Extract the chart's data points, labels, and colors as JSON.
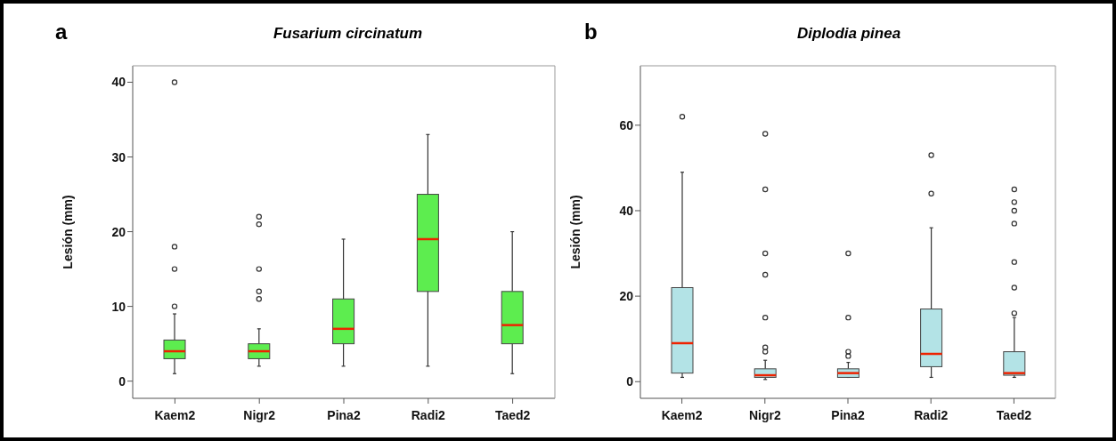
{
  "chart_data": [
    {
      "type": "box",
      "title": "Fusarium circinatum",
      "ylabel": "Lesión (mm)",
      "annotations": [
        "a"
      ],
      "categories": [
        "Kaem2",
        "Nigr2",
        "Pina2",
        "Radi2",
        "Taed2"
      ],
      "ylim": [
        -2.3,
        42.2
      ],
      "yticks": [
        0,
        10,
        20,
        30,
        40
      ],
      "series": [
        {
          "color": "#5ded4f",
          "boxes": [
            {
              "low": 1,
              "q1": 3,
              "median": 4,
              "q3": 5.5,
              "high": 9,
              "outliers": [
                10,
                15,
                18,
                40
              ]
            },
            {
              "low": 2,
              "q1": 3,
              "median": 4,
              "q3": 5,
              "high": 7,
              "outliers": [
                11,
                12,
                15,
                21,
                22
              ]
            },
            {
              "low": 2,
              "q1": 5,
              "median": 7,
              "q3": 11,
              "high": 19
            },
            {
              "low": 2,
              "q1": 12,
              "median": 19,
              "q3": 25,
              "high": 33
            },
            {
              "low": 1,
              "q1": 5,
              "median": 7.5,
              "q3": 12,
              "high": 20
            }
          ]
        }
      ]
    },
    {
      "type": "box",
      "title": "Diplodia pinea",
      "ylabel": "Lesión (mm)",
      "annotations": [
        "b"
      ],
      "categories": [
        "Kaem2",
        "Nigr2",
        "Pina2",
        "Radi2",
        "Taed2"
      ],
      "ylim": [
        -3.9,
        73.9
      ],
      "yticks": [
        0,
        20,
        40,
        60
      ],
      "series": [
        {
          "color": "#b3e3e6",
          "boxes": [
            {
              "low": 1,
              "q1": 2,
              "median": 9,
              "q3": 22,
              "high": 49,
              "outliers": [
                62
              ]
            },
            {
              "low": 0.5,
              "q1": 1,
              "median": 1.5,
              "q3": 3,
              "high": 5,
              "outliers": [
                7,
                8,
                15,
                25,
                30,
                45,
                58
              ]
            },
            {
              "low": 1,
              "q1": 1,
              "median": 2,
              "q3": 3,
              "high": 4.5,
              "outliers": [
                6,
                7,
                15,
                30
              ]
            },
            {
              "low": 1,
              "q1": 3.5,
              "median": 6.5,
              "q3": 17,
              "high": 36,
              "outliers": [
                44,
                53
              ]
            },
            {
              "low": 1,
              "q1": 1.5,
              "median": 2,
              "q3": 7,
              "high": 15,
              "outliers": [
                16,
                22,
                28,
                37,
                40,
                42,
                45
              ]
            }
          ]
        }
      ]
    }
  ]
}
